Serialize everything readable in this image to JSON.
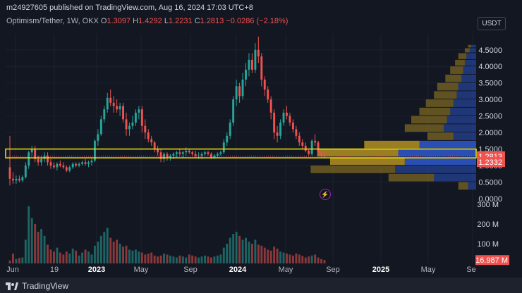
{
  "header": {
    "publisher": "m24927605 published on TradingView.com, Aug 16, 2024 17:03 UTC+8"
  },
  "legend": {
    "symbol": "Optimism/Tether, 1W, OKX",
    "open_label": "O",
    "open": "1.3097",
    "high_label": "H",
    "high": "1.4292",
    "low_label": "L",
    "low": "1.2231",
    "close_label": "C",
    "close": "1.2813",
    "change": "−0.0286 (−2.18%)"
  },
  "currency_button": "USDT",
  "price_axis": {
    "ticks": [
      "4.5000",
      "4.0000",
      "3.5000",
      "3.0000",
      "2.5000",
      "2.0000",
      "1.5000",
      "1.0000",
      "0.5000",
      "0.0000"
    ],
    "last_price": "1.2813",
    "box_low_price": "1.2332"
  },
  "volume_axis": {
    "ticks": [
      "300 M",
      "200 M",
      "100 M"
    ],
    "last_volume": "16.987 M"
  },
  "time_axis": {
    "ticks": [
      "Jun",
      "19",
      "2023",
      "May",
      "Sep",
      "2024",
      "May",
      "Sep",
      "2025",
      "May",
      "Se"
    ]
  },
  "event_icon": "lightning-icon",
  "footer": {
    "brand": "TradingView"
  },
  "colors": {
    "background": "#131722",
    "up": "#26a69a",
    "down": "#ef5350",
    "box": "#f5e50a",
    "profile_gold": "#a28323",
    "profile_blue": "#2a52be"
  },
  "chart_data": {
    "type": "candlestick",
    "symbol": "Optimism/Tether",
    "interval": "1W",
    "ylim": [
      0,
      4.9
    ],
    "candles": [
      [
        0.95,
        1.9,
        0.4,
        0.6
      ],
      [
        0.6,
        0.8,
        0.45,
        0.55
      ],
      [
        0.55,
        0.7,
        0.45,
        0.6
      ],
      [
        0.6,
        0.7,
        0.5,
        0.55
      ],
      [
        0.55,
        0.7,
        0.5,
        0.65
      ],
      [
        0.65,
        1.1,
        0.6,
        1.0
      ],
      [
        1.0,
        1.45,
        0.9,
        1.4
      ],
      [
        1.4,
        1.6,
        1.3,
        1.5
      ],
      [
        1.5,
        1.6,
        1.1,
        1.2
      ],
      [
        1.2,
        1.3,
        1.0,
        1.1
      ],
      [
        1.1,
        1.3,
        1.0,
        1.2
      ],
      [
        1.2,
        1.4,
        1.1,
        1.3
      ],
      [
        1.3,
        1.4,
        1.0,
        1.1
      ],
      [
        1.1,
        1.2,
        0.9,
        1.0
      ],
      [
        1.0,
        1.1,
        0.9,
        0.95
      ],
      [
        0.95,
        1.1,
        0.85,
        1.05
      ],
      [
        1.05,
        1.15,
        0.95,
        1.0
      ],
      [
        1.0,
        1.1,
        0.9,
        0.95
      ],
      [
        0.95,
        1.0,
        0.8,
        0.85
      ],
      [
        0.85,
        1.0,
        0.8,
        0.95
      ],
      [
        0.95,
        1.1,
        0.9,
        1.05
      ],
      [
        1.05,
        1.1,
        0.95,
        1.0
      ],
      [
        1.0,
        1.1,
        0.95,
        1.05
      ],
      [
        1.05,
        1.15,
        1.0,
        1.1
      ],
      [
        1.1,
        1.2,
        1.0,
        1.05
      ],
      [
        1.05,
        1.15,
        0.95,
        1.1
      ],
      [
        1.1,
        1.2,
        1.0,
        1.15
      ],
      [
        1.15,
        1.8,
        1.1,
        1.75
      ],
      [
        1.75,
        2.1,
        1.6,
        1.95
      ],
      [
        1.95,
        2.5,
        1.9,
        2.4
      ],
      [
        2.4,
        2.8,
        2.3,
        2.7
      ],
      [
        2.7,
        3.2,
        2.6,
        3.05
      ],
      [
        3.05,
        3.3,
        2.8,
        2.9
      ],
      [
        2.9,
        3.1,
        2.6,
        2.8
      ],
      [
        2.8,
        3.0,
        2.6,
        2.7
      ],
      [
        2.7,
        2.9,
        2.5,
        2.8
      ],
      [
        2.8,
        2.9,
        2.3,
        2.4
      ],
      [
        2.4,
        2.6,
        1.9,
        2.1
      ],
      [
        2.1,
        2.3,
        1.9,
        2.2
      ],
      [
        2.2,
        2.5,
        2.1,
        2.3
      ],
      [
        2.3,
        2.7,
        2.2,
        2.6
      ],
      [
        2.6,
        2.8,
        2.4,
        2.7
      ],
      [
        2.7,
        2.8,
        2.0,
        2.2
      ],
      [
        2.2,
        2.4,
        1.8,
        2.0
      ],
      [
        2.0,
        2.1,
        1.7,
        1.8
      ],
      [
        1.8,
        1.9,
        1.6,
        1.7
      ],
      [
        1.7,
        1.75,
        1.4,
        1.5
      ],
      [
        1.5,
        1.6,
        1.3,
        1.4
      ],
      [
        1.4,
        1.5,
        1.1,
        1.2
      ],
      [
        1.2,
        1.4,
        1.1,
        1.35
      ],
      [
        1.35,
        1.4,
        1.15,
        1.25
      ],
      [
        1.25,
        1.35,
        1.15,
        1.3
      ],
      [
        1.3,
        1.4,
        1.2,
        1.35
      ],
      [
        1.35,
        1.45,
        1.25,
        1.4
      ],
      [
        1.4,
        1.5,
        1.3,
        1.35
      ],
      [
        1.35,
        1.45,
        1.25,
        1.4
      ],
      [
        1.4,
        1.55,
        1.3,
        1.45
      ],
      [
        1.45,
        1.5,
        1.35,
        1.4
      ],
      [
        1.4,
        1.45,
        1.3,
        1.35
      ],
      [
        1.35,
        1.45,
        1.25,
        1.3
      ],
      [
        1.3,
        1.4,
        1.2,
        1.3
      ],
      [
        1.3,
        1.4,
        1.2,
        1.35
      ],
      [
        1.35,
        1.45,
        1.3,
        1.4
      ],
      [
        1.4,
        1.45,
        1.3,
        1.35
      ],
      [
        1.35,
        1.4,
        1.2,
        1.25
      ],
      [
        1.25,
        1.35,
        1.2,
        1.3
      ],
      [
        1.3,
        1.4,
        1.25,
        1.35
      ],
      [
        1.35,
        1.45,
        1.3,
        1.4
      ],
      [
        1.4,
        1.8,
        1.35,
        1.7
      ],
      [
        1.7,
        2.0,
        1.6,
        1.9
      ],
      [
        1.9,
        2.4,
        1.8,
        2.3
      ],
      [
        2.3,
        3.1,
        2.2,
        3.0
      ],
      [
        3.0,
        3.6,
        2.8,
        3.4
      ],
      [
        3.4,
        3.5,
        2.9,
        3.1
      ],
      [
        3.1,
        3.8,
        3.0,
        3.6
      ],
      [
        3.6,
        4.1,
        3.4,
        3.9
      ],
      [
        3.9,
        4.4,
        3.7,
        4.2
      ],
      [
        4.2,
        4.4,
        3.8,
        3.9
      ],
      [
        3.9,
        4.7,
        3.8,
        4.5
      ],
      [
        4.5,
        4.9,
        4.1,
        4.3
      ],
      [
        4.3,
        4.4,
        3.4,
        3.6
      ],
      [
        3.6,
        3.7,
        3.1,
        3.3
      ],
      [
        3.3,
        3.4,
        2.9,
        3.0
      ],
      [
        3.0,
        3.1,
        2.4,
        2.6
      ],
      [
        2.6,
        2.7,
        1.8,
        2.0
      ],
      [
        2.0,
        2.2,
        1.7,
        1.9
      ],
      [
        1.9,
        2.4,
        1.8,
        2.3
      ],
      [
        2.3,
        2.7,
        2.2,
        2.6
      ],
      [
        2.6,
        2.8,
        2.4,
        2.5
      ],
      [
        2.5,
        2.6,
        2.2,
        2.3
      ],
      [
        2.3,
        2.4,
        2.0,
        2.1
      ],
      [
        2.1,
        2.2,
        1.8,
        1.9
      ],
      [
        1.9,
        2.0,
        1.6,
        1.7
      ],
      [
        1.7,
        1.8,
        1.5,
        1.6
      ],
      [
        1.6,
        1.7,
        1.4,
        1.45
      ],
      [
        1.45,
        1.5,
        1.3,
        1.35
      ],
      [
        1.35,
        1.8,
        1.3,
        1.75
      ],
      [
        1.75,
        1.95,
        1.6,
        1.7
      ],
      [
        1.7,
        1.75,
        1.35,
        1.4
      ],
      [
        1.4,
        1.45,
        1.25,
        1.31
      ],
      [
        1.31,
        1.43,
        1.22,
        1.28
      ]
    ],
    "volumes_m": [
      15,
      50,
      22,
      28,
      30,
      120,
      290,
      230,
      200,
      160,
      175,
      140,
      95,
      70,
      60,
      80,
      55,
      45,
      60,
      50,
      75,
      65,
      40,
      55,
      70,
      60,
      45,
      90,
      110,
      140,
      160,
      180,
      130,
      110,
      120,
      100,
      85,
      90,
      70,
      65,
      70,
      60,
      55,
      45,
      50,
      55,
      40,
      35,
      40,
      50,
      45,
      40,
      35,
      30,
      40,
      35,
      30,
      45,
      40,
      35,
      30,
      35,
      40,
      35,
      30,
      35,
      40,
      45,
      80,
      100,
      130,
      150,
      160,
      140,
      120,
      130,
      110,
      100,
      120,
      95,
      90,
      80,
      70,
      65,
      85,
      75,
      60,
      55,
      50,
      45,
      40,
      50,
      45,
      38,
      30,
      35,
      40,
      45,
      30,
      22,
      17
    ],
    "volume_ylim": [
      0,
      300
    ],
    "volume_profile": [
      [
        4.55,
        4.65,
        0.02,
        0.03
      ],
      [
        4.4,
        4.55,
        0.03,
        0.04
      ],
      [
        4.2,
        4.4,
        0.05,
        0.06
      ],
      [
        4.0,
        4.2,
        0.06,
        0.07
      ],
      [
        3.75,
        4.0,
        0.08,
        0.08
      ],
      [
        3.5,
        3.75,
        0.1,
        0.09
      ],
      [
        3.25,
        3.5,
        0.13,
        0.11
      ],
      [
        3.0,
        3.25,
        0.14,
        0.12
      ],
      [
        2.75,
        3.0,
        0.17,
        0.14
      ],
      [
        2.5,
        2.75,
        0.19,
        0.16
      ],
      [
        2.25,
        2.5,
        0.22,
        0.18
      ],
      [
        2.0,
        2.25,
        0.24,
        0.2
      ],
      [
        1.75,
        2.0,
        0.16,
        0.14
      ],
      [
        1.5,
        1.75,
        0.34,
        0.35
      ],
      [
        1.25,
        1.5,
        0.5,
        0.48
      ],
      [
        1.0,
        1.25,
        0.46,
        0.44
      ],
      [
        0.75,
        1.0,
        0.52,
        0.5
      ],
      [
        0.5,
        0.75,
        0.28,
        0.26
      ],
      [
        0.25,
        0.5,
        0.06,
        0.05
      ]
    ],
    "value_area": [
      1.2332,
      1.5
    ],
    "last_price": 1.2813
  }
}
